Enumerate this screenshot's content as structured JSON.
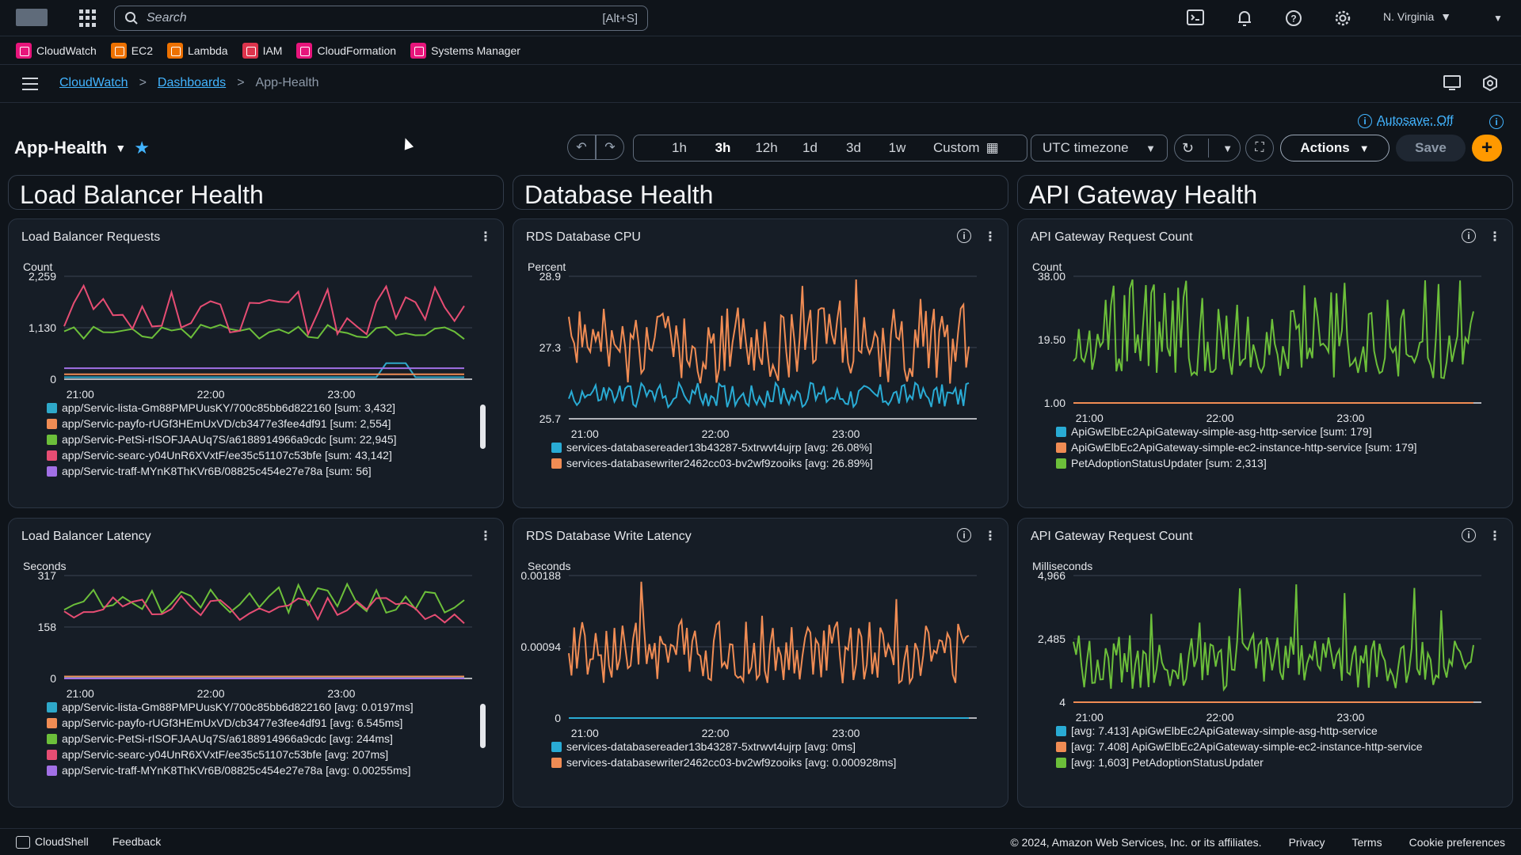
{
  "topnav": {
    "search_placeholder": "Search",
    "search_shortcut": "[Alt+S]",
    "region": "N. Virginia"
  },
  "favorites": [
    {
      "label": "CloudWatch",
      "color": "#e7157b"
    },
    {
      "label": "EC2",
      "color": "#ed7100"
    },
    {
      "label": "Lambda",
      "color": "#ed7100"
    },
    {
      "label": "IAM",
      "color": "#dd344c"
    },
    {
      "label": "CloudFormation",
      "color": "#e7157b"
    },
    {
      "label": "Systems Manager",
      "color": "#e7157b"
    }
  ],
  "breadcrumb": {
    "root": "CloudWatch",
    "dashboards": "Dashboards",
    "current": "App-Health"
  },
  "header": {
    "title": "App-Health",
    "autosave": "Autosave: Off",
    "time_ranges": [
      "1h",
      "3h",
      "12h",
      "1d",
      "3d",
      "1w"
    ],
    "active_range": "3h",
    "custom_label": "Custom",
    "timezone": "UTC timezone",
    "actions_label": "Actions",
    "save_label": "Save"
  },
  "sections": [
    "Load Balancer Health",
    "Database Health",
    "API Gateway Health"
  ],
  "chart_data": [
    {
      "type": "line",
      "title": "Load Balancer Requests",
      "ylabel": "Count",
      "yticks": [
        "2,259",
        "1,130",
        "0"
      ],
      "ylim": [
        0,
        2259
      ],
      "xticks": [
        "21:00",
        "22:00",
        "23:00"
      ],
      "series": [
        {
          "name": "app/Servic-lista-Gm88PMPUusKY/700c85bb6d822160 [sum: 3,432]",
          "color": "#2ea8c9"
        },
        {
          "name": "app/Servic-payfo-rUGf3HEmUxVD/cb3477e3fee4df91 [sum: 2,554]",
          "color": "#f08c54"
        },
        {
          "name": "app/Servic-PetSi-rISOFJAAUq7S/a6188914966a9cdc [sum: 22,945]",
          "color": "#6cbf3a"
        },
        {
          "name": "app/Servic-searc-y04UnR6XVxtF/ee35c51107c53bfe [sum: 43,142]",
          "color": "#e64d73"
        },
        {
          "name": "app/Servic-traff-MYnK8ThKVr6B/08825c454e27e78a [sum: 56]",
          "color": "#a270e6"
        }
      ]
    },
    {
      "type": "line",
      "title": "RDS Database CPU",
      "ylabel": "Percent",
      "yticks": [
        "28.9",
        "27.3",
        "25.7"
      ],
      "ylim": [
        25.7,
        28.9
      ],
      "xticks": [
        "21:00",
        "22:00",
        "23:00"
      ],
      "series": [
        {
          "name": "services-databasereader13b43287-5xtrwvt4ujrp [avg: 26.08%]",
          "color": "#29abd4"
        },
        {
          "name": "services-databasewriter2462cc03-bv2wf9zooiks [avg: 26.89%]",
          "color": "#f08c54"
        }
      ]
    },
    {
      "type": "line",
      "title": "API Gateway Request Count",
      "ylabel": "Count",
      "yticks": [
        "38.00",
        "19.50",
        "1.00"
      ],
      "ylim": [
        1,
        38
      ],
      "xticks": [
        "21:00",
        "22:00",
        "23:00"
      ],
      "series": [
        {
          "name": "ApiGwElbEc2ApiGateway-simple-asg-http-service [sum: 179]",
          "color": "#29abd4"
        },
        {
          "name": "ApiGwElbEc2ApiGateway-simple-ec2-instance-http-service [sum: 179]",
          "color": "#f08c54"
        },
        {
          "name": "PetAdoptionStatusUpdater [sum: 2,313]",
          "color": "#6cbf3a"
        }
      ]
    },
    {
      "type": "line",
      "title": "Load Balancer Latency",
      "ylabel": "Seconds",
      "yticks": [
        "317",
        "158",
        "0"
      ],
      "ylim": [
        0,
        317
      ],
      "xticks": [
        "21:00",
        "22:00",
        "23:00"
      ],
      "series": [
        {
          "name": "app/Servic-lista-Gm88PMPUusKY/700c85bb6d822160 [avg: 0.0197ms]",
          "color": "#2ea8c9"
        },
        {
          "name": "app/Servic-payfo-rUGf3HEmUxVD/cb3477e3fee4df91 [avg: 6.545ms]",
          "color": "#f08c54"
        },
        {
          "name": "app/Servic-PetSi-rISOFJAAUq7S/a6188914966a9cdc [avg: 244ms]",
          "color": "#6cbf3a"
        },
        {
          "name": "app/Servic-searc-y04UnR6XVxtF/ee35c51107c53bfe [avg: 207ms]",
          "color": "#e64d73"
        },
        {
          "name": "app/Servic-traff-MYnK8ThKVr6B/08825c454e27e78a [avg: 0.00255ms]",
          "color": "#a270e6"
        }
      ]
    },
    {
      "type": "line",
      "title": "RDS Database Write Latency",
      "ylabel": "Seconds",
      "yticks": [
        "0.00188",
        "0.00094",
        "0"
      ],
      "ylim": [
        0,
        0.00188
      ],
      "xticks": [
        "21:00",
        "22:00",
        "23:00"
      ],
      "series": [
        {
          "name": "services-databasereader13b43287-5xtrwvt4ujrp [avg: 0ms]",
          "color": "#29abd4"
        },
        {
          "name": "services-databasewriter2462cc03-bv2wf9zooiks [avg: 0.000928ms]",
          "color": "#f08c54"
        }
      ]
    },
    {
      "type": "line",
      "title": "API Gateway Request Count",
      "ylabel": "Milliseconds",
      "yticks": [
        "4,966",
        "2,485",
        "4"
      ],
      "ylim": [
        4,
        4966
      ],
      "xticks": [
        "21:00",
        "22:00",
        "23:00"
      ],
      "series": [
        {
          "name": "[avg: 7.413] ApiGwElbEc2ApiGateway-simple-asg-http-service",
          "color": "#29abd4"
        },
        {
          "name": "[avg: 7.408] ApiGwElbEc2ApiGateway-simple-ec2-instance-http-service",
          "color": "#f08c54"
        },
        {
          "name": "[avg: 1,603] PetAdoptionStatusUpdater",
          "color": "#6cbf3a"
        }
      ]
    }
  ],
  "footer": {
    "cloudshell": "CloudShell",
    "feedback": "Feedback",
    "copyright": "© 2024, Amazon Web Services, Inc. or its affiliates.",
    "privacy": "Privacy",
    "terms": "Terms",
    "cookies": "Cookie preferences"
  }
}
